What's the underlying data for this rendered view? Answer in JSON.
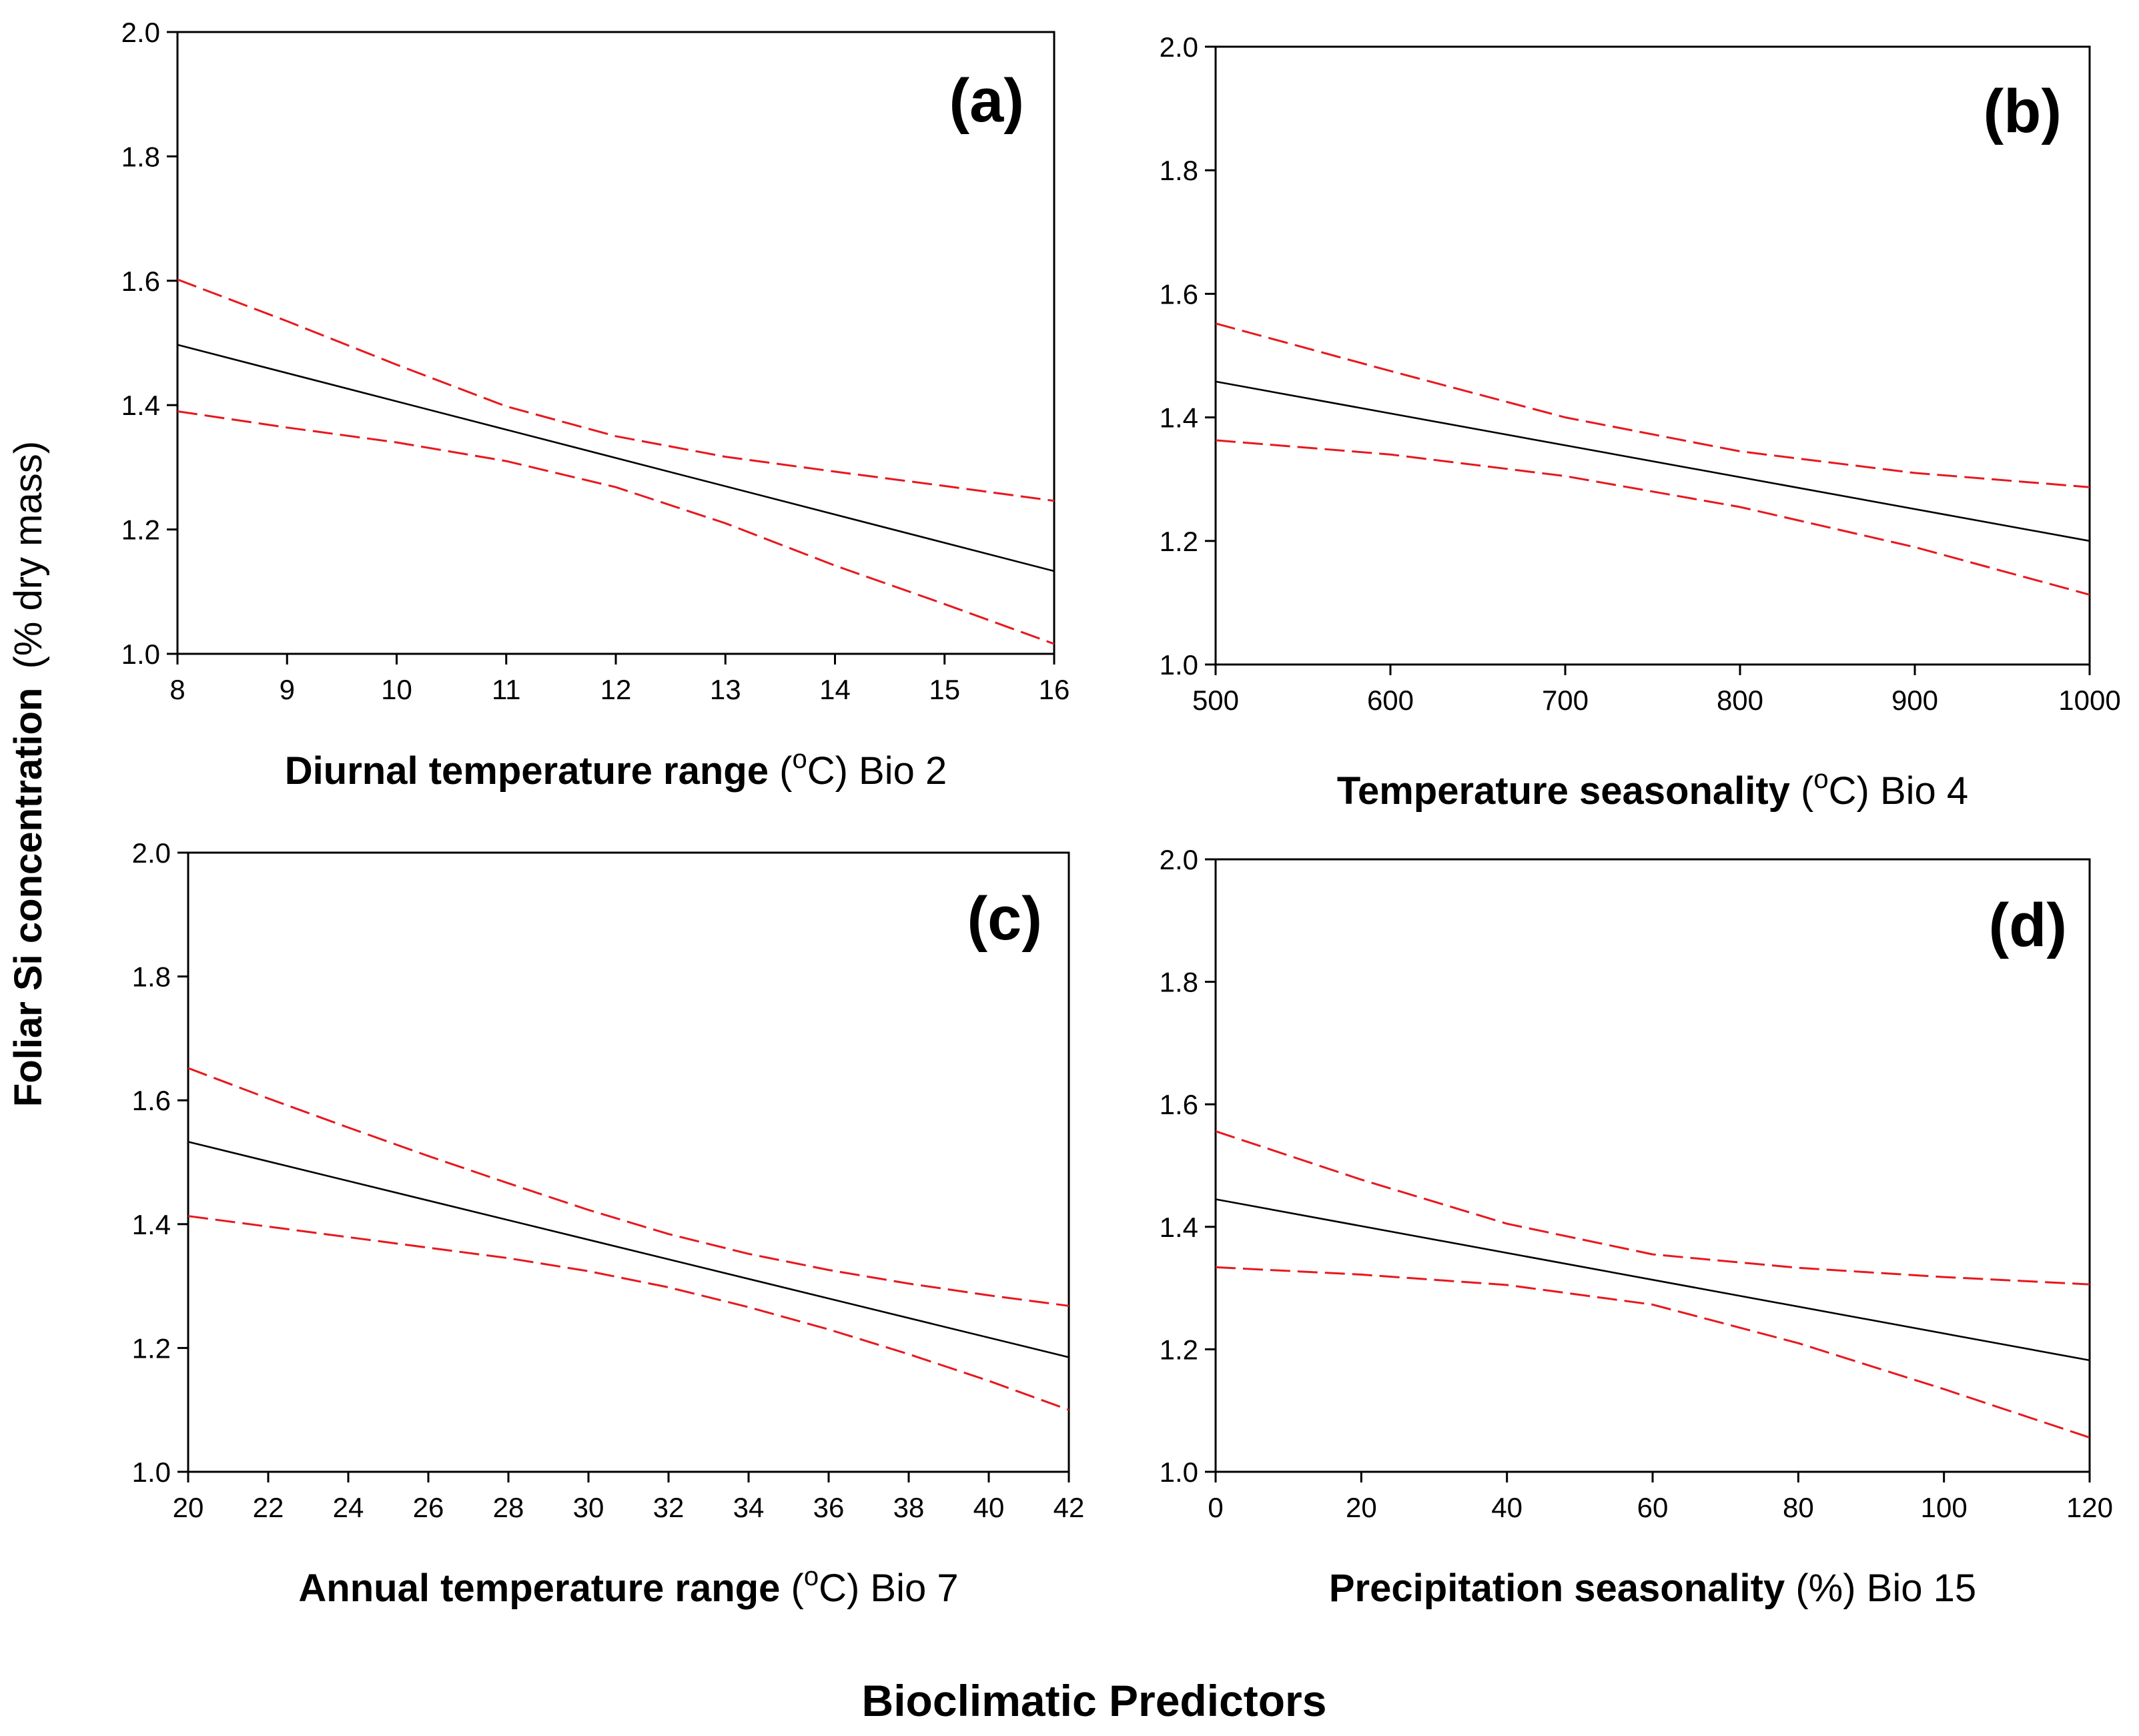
{
  "figure": {
    "y_axis_title": "Foliar Si concentration",
    "y_axis_unit": "(% dry mass)",
    "x_axis_title": "Bioclimatic Predictors"
  },
  "colors": {
    "fit": "#000000",
    "ci": "#e8171d",
    "frame": "#000000"
  },
  "chart_data": [
    {
      "type": "line",
      "panel": "(a)",
      "xlabel_bold": "Diurnal temperature range",
      "xlabel_pre": " (",
      "xlabel_sup": "o",
      "xlabel_post": "C) Bio 2",
      "xlim": [
        8,
        16
      ],
      "ylim": [
        1.0,
        2.0
      ],
      "xticks": [
        8,
        9,
        10,
        11,
        12,
        13,
        14,
        15,
        16
      ],
      "yticks": [
        "1.0",
        "1.2",
        "1.4",
        "1.6",
        "1.8",
        "2.0"
      ],
      "series": [
        {
          "name": "fit",
          "style": "solid",
          "x": [
            8,
            16
          ],
          "y": [
            1.497,
            1.133
          ]
        },
        {
          "name": "upper 95% CI",
          "style": "dashed",
          "x": [
            8,
            9,
            10,
            11,
            12,
            13,
            14,
            15,
            16
          ],
          "y": [
            1.602,
            1.535,
            1.465,
            1.398,
            1.35,
            1.317,
            1.293,
            1.27,
            1.246
          ]
        },
        {
          "name": "lower 95% CI",
          "style": "dashed",
          "x": [
            8,
            9,
            10,
            11,
            12,
            13,
            14,
            15,
            16
          ],
          "y": [
            1.39,
            1.364,
            1.34,
            1.31,
            1.268,
            1.21,
            1.142,
            1.08,
            1.016
          ]
        }
      ]
    },
    {
      "type": "line",
      "panel": "(b)",
      "xlabel_bold": "Temperature seasonality",
      "xlabel_pre": " (",
      "xlabel_sup": "o",
      "xlabel_post": "C) Bio 4",
      "xlim": [
        500,
        1000
      ],
      "ylim": [
        1.0,
        2.0
      ],
      "xticks": [
        500,
        600,
        700,
        800,
        900,
        1000
      ],
      "yticks": [
        "1.0",
        "1.2",
        "1.4",
        "1.6",
        "1.8",
        "2.0"
      ],
      "series": [
        {
          "name": "fit",
          "style": "solid",
          "x": [
            500,
            1000
          ],
          "y": [
            1.458,
            1.2
          ]
        },
        {
          "name": "upper 95% CI",
          "style": "dashed",
          "x": [
            500,
            600,
            700,
            800,
            900,
            1000
          ],
          "y": [
            1.552,
            1.475,
            1.4,
            1.345,
            1.31,
            1.287
          ]
        },
        {
          "name": "lower 95% CI",
          "style": "dashed",
          "x": [
            500,
            600,
            700,
            800,
            900,
            1000
          ],
          "y": [
            1.363,
            1.34,
            1.305,
            1.255,
            1.19,
            1.113
          ]
        }
      ]
    },
    {
      "type": "line",
      "panel": "(c)",
      "xlabel_bold": "Annual temperature range",
      "xlabel_pre": " (",
      "xlabel_sup": "o",
      "xlabel_post": "C) Bio 7",
      "xlim": [
        20,
        42
      ],
      "ylim": [
        1.0,
        2.0
      ],
      "xticks": [
        20,
        22,
        24,
        26,
        28,
        30,
        32,
        34,
        36,
        38,
        40,
        42
      ],
      "yticks": [
        "1.0",
        "1.2",
        "1.4",
        "1.6",
        "1.8",
        "2.0"
      ],
      "series": [
        {
          "name": "fit",
          "style": "solid",
          "x": [
            20,
            42
          ],
          "y": [
            1.533,
            1.185
          ]
        },
        {
          "name": "upper 95% CI",
          "style": "dashed",
          "x": [
            20,
            22,
            24,
            26,
            28,
            30,
            32,
            34,
            36,
            38,
            40,
            42
          ],
          "y": [
            1.652,
            1.603,
            1.556,
            1.51,
            1.466,
            1.423,
            1.384,
            1.352,
            1.326,
            1.304,
            1.285,
            1.268
          ]
        },
        {
          "name": "lower 95% CI",
          "style": "dashed",
          "x": [
            20,
            22,
            24,
            26,
            28,
            30,
            32,
            34,
            36,
            38,
            40,
            42
          ],
          "y": [
            1.413,
            1.396,
            1.379,
            1.362,
            1.345,
            1.324,
            1.298,
            1.266,
            1.23,
            1.19,
            1.147,
            1.1
          ]
        }
      ]
    },
    {
      "type": "line",
      "panel": "(d)",
      "xlabel_bold": "Precipitation seasonality",
      "xlabel_pre": " (%) Bio 15",
      "xlabel_sup": "",
      "xlabel_post": "",
      "xlim": [
        0,
        120
      ],
      "ylim": [
        1.0,
        2.0
      ],
      "xticks": [
        0,
        20,
        40,
        60,
        80,
        100,
        120
      ],
      "yticks": [
        "1.0",
        "1.2",
        "1.4",
        "1.6",
        "1.8",
        "2.0"
      ],
      "series": [
        {
          "name": "fit",
          "style": "solid",
          "x": [
            0,
            120
          ],
          "y": [
            1.445,
            1.182
          ]
        },
        {
          "name": "upper 95% CI",
          "style": "dashed",
          "x": [
            0,
            20,
            40,
            60,
            80,
            100,
            120
          ],
          "y": [
            1.556,
            1.477,
            1.405,
            1.355,
            1.333,
            1.318,
            1.306
          ]
        },
        {
          "name": "lower 95% CI",
          "style": "dashed",
          "x": [
            0,
            20,
            40,
            60,
            80,
            100,
            120
          ],
          "y": [
            1.334,
            1.322,
            1.305,
            1.273,
            1.21,
            1.135,
            1.056
          ]
        }
      ]
    }
  ]
}
